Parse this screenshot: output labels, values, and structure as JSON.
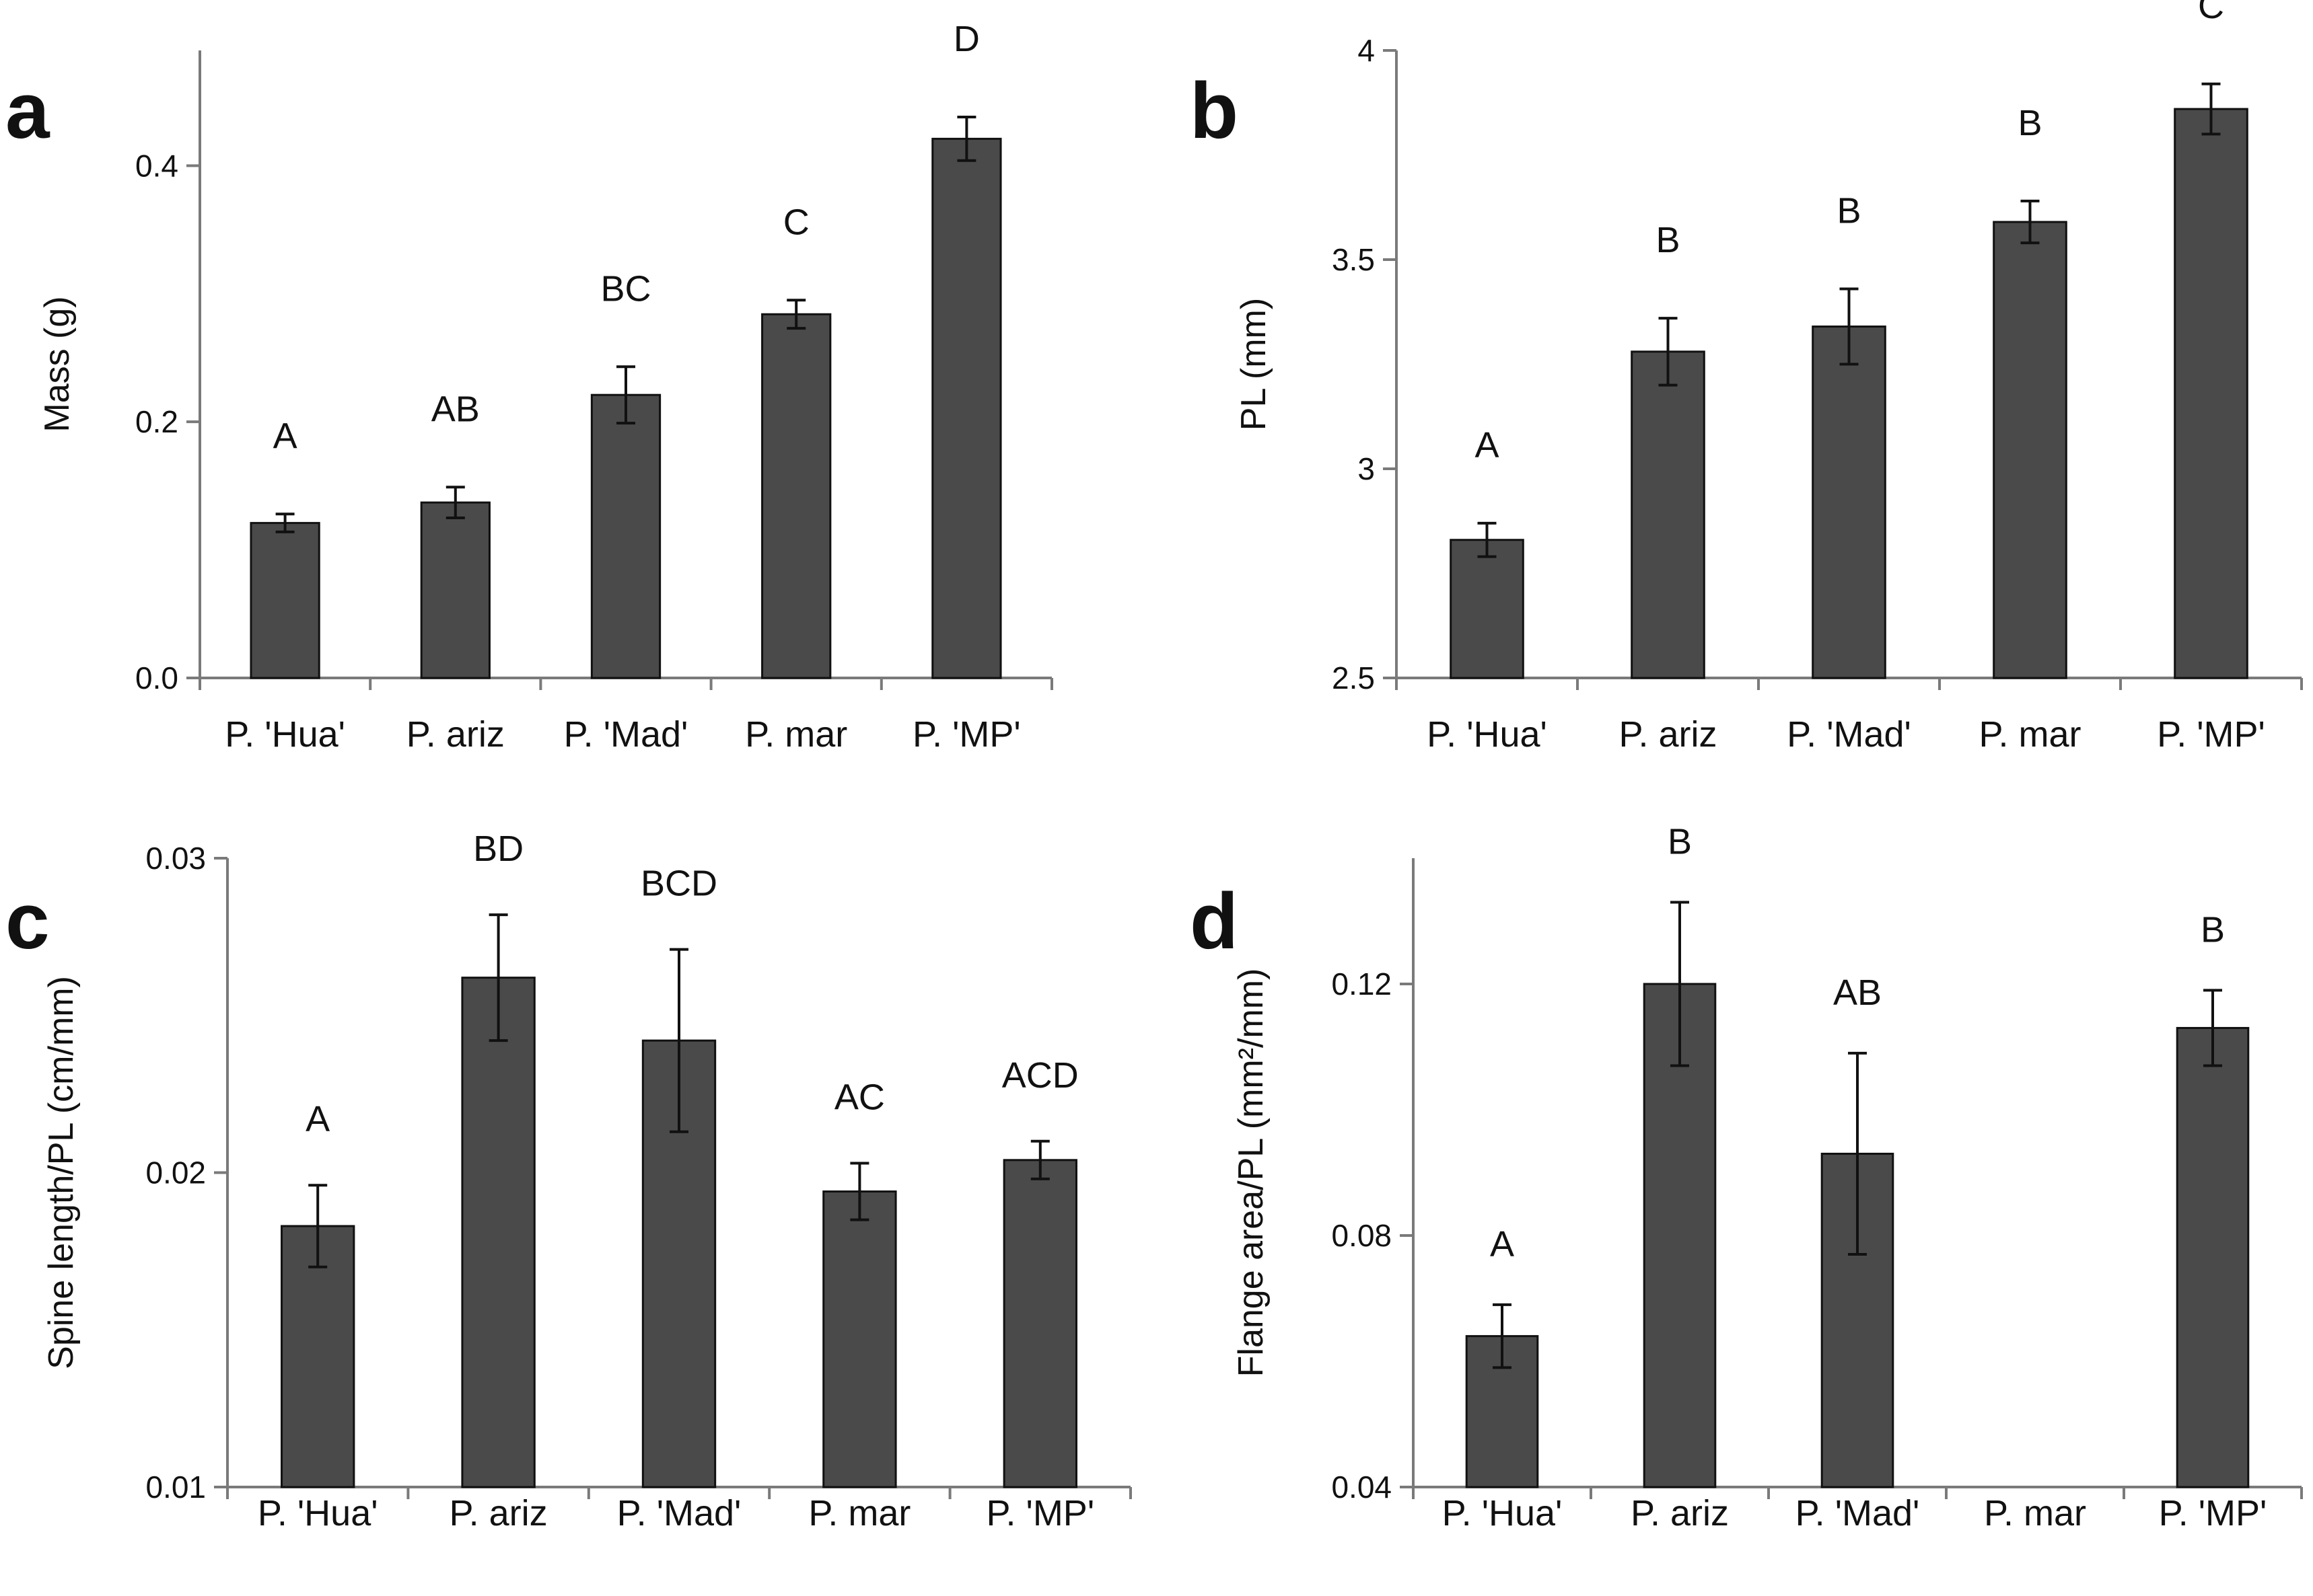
{
  "colors": {
    "bar_fill": "#4a4a4a",
    "axis": "#7a7a7a",
    "text": "#111111"
  },
  "chart_data": [
    {
      "panel": "a",
      "type": "bar",
      "categories": [
        "P. 'Hua'",
        "P. ariz",
        "P. 'Mad'",
        "P. mar",
        "P. 'MP'"
      ],
      "values": [
        0.121,
        0.137,
        0.221,
        0.284,
        0.421
      ],
      "errors": [
        0.007,
        0.012,
        0.022,
        0.011,
        0.017
      ],
      "significance": [
        "A",
        "AB",
        "BC",
        "C",
        "D"
      ],
      "ylabel": "Mass (g)",
      "ylim": [
        0.0,
        0.49
      ],
      "yticks": [
        0.0,
        0.2,
        0.4
      ],
      "ytick_labels": [
        "0.0",
        "0.2",
        "0.4"
      ]
    },
    {
      "panel": "b",
      "type": "bar",
      "categories": [
        "P. 'Hua'",
        "P. ariz",
        "P. 'Mad'",
        "P. mar",
        "P. 'MP'"
      ],
      "values": [
        2.83,
        3.28,
        3.34,
        3.59,
        3.86
      ],
      "errors": [
        0.04,
        0.08,
        0.09,
        0.05,
        0.06
      ],
      "significance": [
        "A",
        "B",
        "B",
        "B",
        "C"
      ],
      "ylabel": "PL (mm)",
      "ylim": [
        2.5,
        4.0
      ],
      "yticks": [
        2.5,
        3.0,
        3.5,
        4.0
      ],
      "ytick_labels": [
        "2.5",
        "3",
        "3.5",
        "4"
      ]
    },
    {
      "panel": "c",
      "type": "bar",
      "categories": [
        "P. 'Hua'",
        "P. ariz",
        "P. 'Mad'",
        "P. mar",
        "P. 'MP'"
      ],
      "values": [
        0.0183,
        0.0262,
        0.0242,
        0.0194,
        0.0204
      ],
      "errors": [
        0.0013,
        0.002,
        0.0029,
        0.0009,
        0.0006
      ],
      "significance": [
        "A",
        "BD",
        "BCD",
        "AC",
        "ACD"
      ],
      "ylabel": "Spine length/PL (cm/mm)",
      "ylim": [
        0.01,
        0.03
      ],
      "yticks": [
        0.01,
        0.02,
        0.03
      ],
      "ytick_labels": [
        "0.01",
        "0.02",
        "0.03"
      ]
    },
    {
      "panel": "d",
      "type": "bar",
      "categories": [
        "P. 'Hua'",
        "P. ariz",
        "P. 'Mad'",
        "P. mar",
        "P. 'MP'"
      ],
      "values": [
        0.064,
        0.12,
        0.093,
        null,
        0.113
      ],
      "errors": [
        0.005,
        0.013,
        0.016,
        null,
        0.006
      ],
      "significance": [
        "A",
        "B",
        "AB",
        "",
        "B"
      ],
      "ylabel": "Flange area/PL (mm²/mm)",
      "ylim": [
        0.04,
        0.14
      ],
      "yticks": [
        0.04,
        0.08,
        0.12
      ],
      "ytick_labels": [
        "0.04",
        "0.08",
        "0.12"
      ]
    }
  ]
}
